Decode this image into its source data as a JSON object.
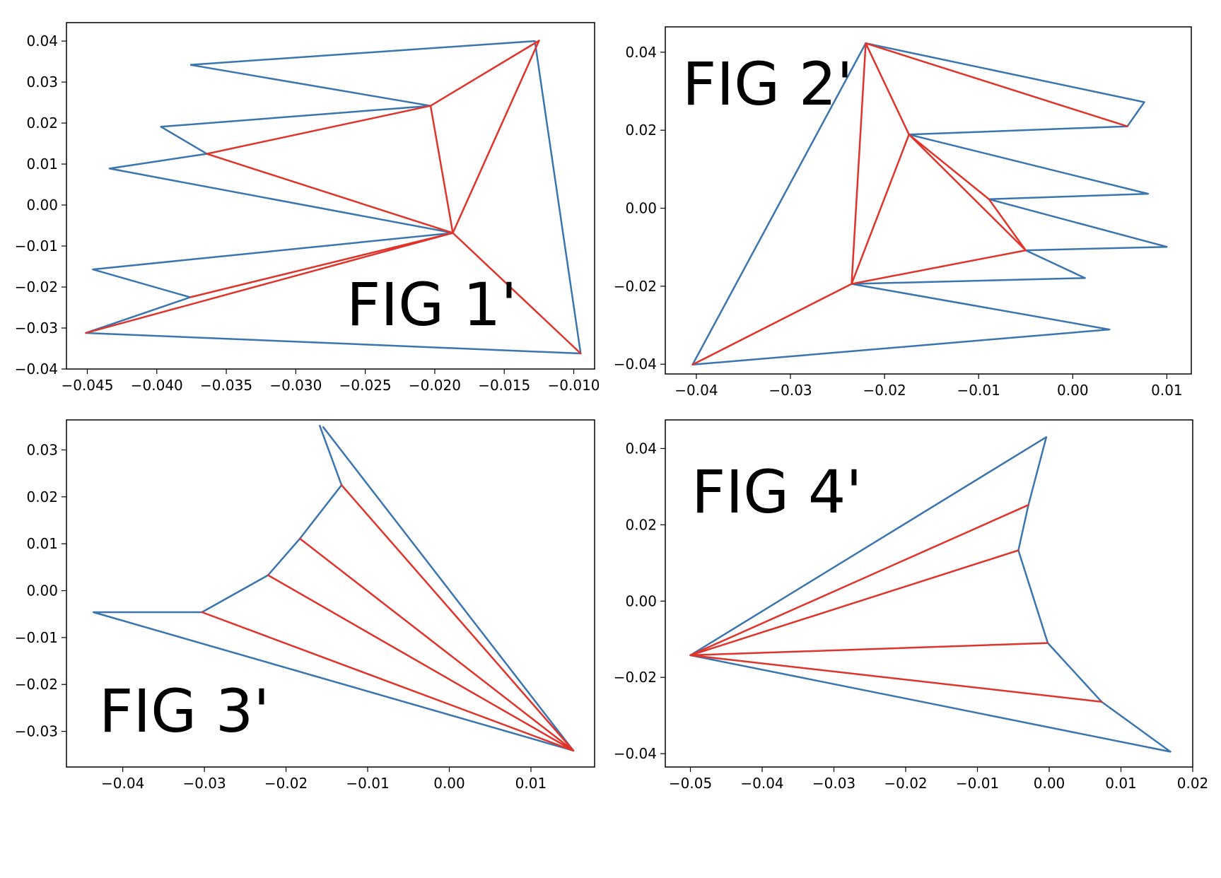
{
  "colors": {
    "outline": "#3a75b0",
    "fan": "#e0332a",
    "frame": "#000000",
    "background": "#ffffff"
  },
  "chart_data": [
    {
      "type": "line",
      "annotation": "FIG 1'",
      "xlim": [
        -0.0465,
        -0.0085
      ],
      "ylim": [
        -0.04,
        0.0445
      ],
      "xticks": [
        -0.045,
        -0.04,
        -0.035,
        -0.03,
        -0.025,
        -0.02,
        -0.015,
        -0.01
      ],
      "xtick_labels": [
        "−0.045",
        "−0.040",
        "−0.035",
        "−0.030",
        "−0.025",
        "−0.020",
        "−0.015",
        "−0.010"
      ],
      "yticks": [
        -0.04,
        -0.03,
        -0.02,
        -0.01,
        0.0,
        0.01,
        0.02,
        0.03,
        0.04
      ],
      "ytick_labels": [
        "−0.04",
        "−0.03",
        "−0.02",
        "−0.01",
        "0.00",
        "0.01",
        "0.02",
        "0.03",
        "0.04"
      ],
      "outline": [
        [
          -0.0376,
          0.0342
        ],
        [
          -0.0128,
          0.04
        ],
        [
          -0.0095,
          -0.0362
        ],
        [
          -0.0451,
          -0.0312
        ],
        [
          -0.0376,
          -0.0225
        ],
        [
          -0.0446,
          -0.0157
        ],
        [
          -0.0187,
          -0.0068
        ],
        [
          -0.0434,
          0.0089
        ],
        [
          -0.0364,
          0.0125
        ],
        [
          -0.0397,
          0.0191
        ],
        [
          -0.0203,
          0.0242
        ],
        [
          -0.0376,
          0.0342
        ]
      ],
      "fan_segments": [
        [
          [
            -0.0187,
            -0.0068
          ],
          [
            -0.0125,
            0.0401
          ]
        ],
        [
          [
            -0.0125,
            0.0401
          ],
          [
            -0.0203,
            0.0242
          ]
        ],
        [
          [
            -0.0203,
            0.0242
          ],
          [
            -0.0364,
            0.0125
          ]
        ],
        [
          [
            -0.0203,
            0.0242
          ],
          [
            -0.0187,
            -0.0068
          ]
        ],
        [
          [
            -0.0364,
            0.0125
          ],
          [
            -0.0187,
            -0.0068
          ]
        ],
        [
          [
            -0.0187,
            -0.0068
          ],
          [
            -0.0376,
            -0.0225
          ]
        ],
        [
          [
            -0.0187,
            -0.0068
          ],
          [
            -0.0451,
            -0.0312
          ]
        ],
        [
          [
            -0.0187,
            -0.0068
          ],
          [
            -0.0095,
            -0.0362
          ]
        ]
      ]
    },
    {
      "type": "line",
      "annotation": "FIG 2'",
      "xlim": [
        -0.0433,
        0.0126
      ],
      "ylim": [
        -0.0425,
        0.0465
      ],
      "xticks": [
        -0.04,
        -0.03,
        -0.02,
        -0.01,
        0.0,
        0.01
      ],
      "xtick_labels": [
        "−0.04",
        "−0.03",
        "−0.02",
        "−0.01",
        "0.00",
        "0.01"
      ],
      "yticks": [
        -0.04,
        -0.02,
        0.0,
        0.02,
        0.04
      ],
      "ytick_labels": [
        "−0.04",
        "−0.02",
        "0.00",
        "0.02",
        "0.04"
      ],
      "outline": [
        [
          -0.0404,
          -0.0401
        ],
        [
          -0.022,
          0.0423
        ],
        [
          0.0076,
          0.0272
        ],
        [
          0.0058,
          0.021
        ],
        [
          -0.0174,
          0.0189
        ],
        [
          0.008,
          0.0037
        ],
        [
          -0.0089,
          0.0023
        ],
        [
          0.01,
          -0.0099
        ],
        [
          -0.005,
          -0.0108
        ],
        [
          0.0013,
          -0.0179
        ],
        [
          -0.0235,
          -0.0194
        ],
        [
          0.0039,
          -0.0311
        ],
        [
          -0.0404,
          -0.0401
        ]
      ],
      "fan_segments": [
        [
          [
            -0.0404,
            -0.0401
          ],
          [
            -0.0235,
            -0.0194
          ]
        ],
        [
          [
            -0.0235,
            -0.0194
          ],
          [
            -0.022,
            0.0423
          ]
        ],
        [
          [
            -0.022,
            0.0423
          ],
          [
            0.0058,
            0.021
          ]
        ],
        [
          [
            -0.022,
            0.0423
          ],
          [
            -0.0174,
            0.0189
          ]
        ],
        [
          [
            -0.0174,
            0.0189
          ],
          [
            -0.0235,
            -0.0194
          ]
        ],
        [
          [
            -0.0174,
            0.0189
          ],
          [
            -0.0089,
            0.0023
          ]
        ],
        [
          [
            -0.0089,
            0.0023
          ],
          [
            -0.005,
            -0.0108
          ]
        ],
        [
          [
            -0.0174,
            0.0189
          ],
          [
            -0.005,
            -0.0108
          ]
        ],
        [
          [
            -0.005,
            -0.0108
          ],
          [
            -0.0235,
            -0.0194
          ]
        ]
      ]
    },
    {
      "type": "line",
      "annotation": "FIG 3'",
      "xlim": [
        -0.0469,
        0.0178
      ],
      "ylim": [
        -0.0376,
        0.0364
      ],
      "xticks": [
        -0.04,
        -0.03,
        -0.02,
        -0.01,
        0.0,
        0.01
      ],
      "xtick_labels": [
        "−0.04",
        "−0.03",
        "−0.02",
        "−0.01",
        "0.00",
        "0.01"
      ],
      "yticks": [
        -0.03,
        -0.02,
        -0.01,
        0.0,
        0.01,
        0.02,
        0.03
      ],
      "ytick_labels": [
        "−0.03",
        "−0.02",
        "−0.01",
        "0.00",
        "0.01",
        "0.02",
        "0.03"
      ],
      "outline": [
        [
          -0.0159,
          0.0353
        ],
        [
          -0.0132,
          0.0225
        ],
        [
          -0.0183,
          0.0111
        ],
        [
          -0.0222,
          0.0033
        ],
        [
          -0.0303,
          -0.0046
        ],
        [
          -0.0436,
          -0.0046
        ],
        [
          0.0152,
          -0.0341
        ],
        [
          -0.0155,
          0.035
        ]
      ],
      "fan_segments": [
        [
          [
            -0.0132,
            0.0225
          ],
          [
            0.0152,
            -0.0341
          ]
        ],
        [
          [
            -0.0183,
            0.0111
          ],
          [
            0.0152,
            -0.0341
          ]
        ],
        [
          [
            -0.0222,
            0.0033
          ],
          [
            0.0152,
            -0.0341
          ]
        ],
        [
          [
            -0.0303,
            -0.0046
          ],
          [
            0.0152,
            -0.0341
          ]
        ]
      ]
    },
    {
      "type": "line",
      "annotation": "FIG 4'",
      "xlim": [
        -0.0535,
        0.02
      ],
      "ylim": [
        -0.0435,
        0.0475
      ],
      "xticks": [
        -0.05,
        -0.04,
        -0.03,
        -0.02,
        -0.01,
        0.0,
        0.01,
        0.02
      ],
      "xtick_labels": [
        "−0.05",
        "−0.04",
        "−0.03",
        "−0.02",
        "−0.01",
        "0.00",
        "0.01",
        "0.02"
      ],
      "yticks": [
        -0.04,
        -0.02,
        0.0,
        0.02,
        0.04
      ],
      "ytick_labels": [
        "−0.04",
        "−0.02",
        "0.00",
        "0.02",
        "0.04"
      ],
      "outline": [
        [
          -0.05,
          -0.0142
        ],
        [
          -0.0004,
          0.043
        ],
        [
          -0.0029,
          0.0252
        ],
        [
          -0.0043,
          0.0133
        ],
        [
          -0.0002,
          -0.011
        ],
        [
          0.0073,
          -0.0264
        ],
        [
          0.0169,
          -0.0395
        ],
        [
          -0.05,
          -0.0142
        ]
      ],
      "fan_segments": [
        [
          [
            -0.05,
            -0.0142
          ],
          [
            -0.0029,
            0.0252
          ]
        ],
        [
          [
            -0.05,
            -0.0142
          ],
          [
            -0.0043,
            0.0133
          ]
        ],
        [
          [
            -0.05,
            -0.0142
          ],
          [
            -0.0002,
            -0.011
          ]
        ],
        [
          [
            -0.05,
            -0.0142
          ],
          [
            0.0073,
            -0.0264
          ]
        ]
      ]
    }
  ]
}
